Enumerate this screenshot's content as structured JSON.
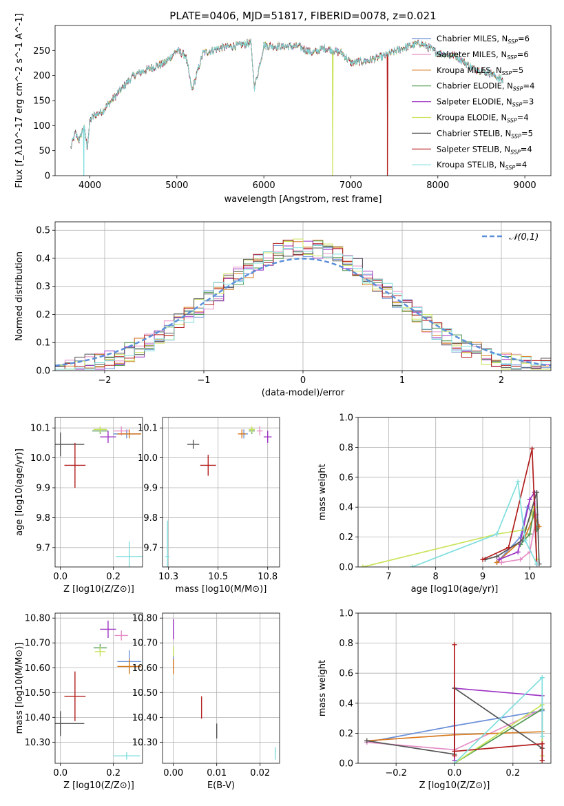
{
  "title": "PLATE=0406, MJD=51817, FIBERID=0078, z=0.021",
  "colors": {
    "chab_miles": "#6a8fd8",
    "salp_miles": "#e58fc6",
    "krou_miles": "#d97a1f",
    "chab_elodie": "#4f9a4f",
    "salp_elodie": "#9d32c4",
    "krou_elodie": "#c9e45a",
    "chab_stelib": "#555555",
    "salp_stelib": "#b21d1d",
    "krou_stelib": "#80dede",
    "normal": "#5b8fd8"
  },
  "chart_data": [
    {
      "id": "spectrum",
      "type": "line",
      "xlabel": "wavelength [Angstrom, rest frame]",
      "ylabel": "Flux [f_λ10^-17 erg cm^-2 s^-1 A^-1]",
      "xlim": [
        3600,
        9300
      ],
      "ylim": [
        0,
        300
      ],
      "xticks": [
        4000,
        5000,
        6000,
        7000,
        8000,
        9000
      ],
      "yticks": [
        0,
        50,
        100,
        150,
        200,
        250
      ],
      "legend_position": "upper-right",
      "grid": false,
      "x_range_data": [
        3780,
        8750
      ],
      "spectrum_anchors": {
        "x": [
          3780,
          3830,
          3880,
          3930,
          3970,
          4000,
          4050,
          4150,
          4300,
          4400,
          4500,
          4700,
          4860,
          5000,
          5100,
          5175,
          5300,
          5500,
          5700,
          5850,
          5893,
          6000,
          6200,
          6400,
          6563,
          6700,
          6900,
          7000,
          7200,
          7400,
          7600,
          7800,
          8000,
          8200,
          8400,
          8600,
          8750
        ],
        "y": [
          55,
          85,
          70,
          100,
          55,
          110,
          120,
          130,
          160,
          180,
          200,
          215,
          225,
          250,
          240,
          170,
          245,
          255,
          260,
          265,
          175,
          260,
          258,
          258,
          245,
          255,
          245,
          225,
          230,
          240,
          255,
          265,
          245,
          240,
          215,
          205,
          190
        ]
      },
      "series": [
        {
          "name": "Chabrier MILES, N_SSP=6",
          "color_key": "chab_miles"
        },
        {
          "name": "Salpeter MILES, N_SSP=6",
          "color_key": "salp_miles"
        },
        {
          "name": "Kroupa MILES, N_SSP=5",
          "color_key": "krou_miles"
        },
        {
          "name": "Chabrier ELODIE, N_SSP=4",
          "color_key": "chab_elodie"
        },
        {
          "name": "Salpeter ELODIE, N_SSP=3",
          "color_key": "salp_elodie"
        },
        {
          "name": "Kroupa ELODIE, N_SSP=4",
          "color_key": "krou_elodie"
        },
        {
          "name": "Chabrier STELIB, N_SSP=5",
          "color_key": "chab_stelib"
        },
        {
          "name": "Salpeter STELIB, N_SSP=4",
          "color_key": "salp_stelib"
        },
        {
          "name": "Kroupa STELIB, N_SSP=4",
          "color_key": "krou_stelib"
        }
      ],
      "dropouts": [
        {
          "series": "Kroupa ELODIE, N_SSP=4",
          "x": 6790
        },
        {
          "series": "Salpeter STELIB, N_SSP=4",
          "x": 7420
        },
        {
          "series": "Kroupa STELIB, N_SSP=4",
          "x": 3930
        }
      ]
    },
    {
      "id": "residuals",
      "type": "histogram",
      "xlabel": "(data-model)/error",
      "ylabel": "Normed distribution",
      "xlim": [
        -2.5,
        2.5
      ],
      "ylim": [
        0,
        0.53
      ],
      "xticks": [
        -2,
        -1,
        0,
        1,
        2
      ],
      "yticks": [
        0.0,
        0.1,
        0.2,
        0.3,
        0.4,
        0.5
      ],
      "grid": true,
      "bin_width": 0.1,
      "reference_curve": {
        "name": "𝒩(0,1)",
        "mean": 0,
        "sigma": 1
      },
      "legend_position": "upper-right"
    },
    {
      "id": "age_vs_Z",
      "type": "errorbar",
      "xlabel": "Z [log10(Z/Z⊙)]",
      "ylabel": "age [log10(age/yr)]",
      "xlim": [
        -0.02,
        0.31
      ],
      "ylim": [
        9.635,
        10.135
      ],
      "xticks": [
        0.0,
        0.2
      ],
      "yticks": [
        9.7,
        9.8,
        9.9,
        10.0,
        10.1
      ],
      "grid": true,
      "points": [
        {
          "color_key": "chab_miles",
          "x": 0.25,
          "y": 10.08,
          "xerr": 0.05,
          "yerr": 0.015
        },
        {
          "color_key": "salp_miles",
          "x": 0.23,
          "y": 10.09,
          "xerr": 0.03,
          "yerr": 0.015
        },
        {
          "color_key": "krou_miles",
          "x": 0.26,
          "y": 10.08,
          "xerr": 0.045,
          "yerr": 0.015
        },
        {
          "color_key": "chab_elodie",
          "x": 0.15,
          "y": 10.09,
          "xerr": 0.03,
          "yerr": 0.01
        },
        {
          "color_key": "salp_elodie",
          "x": 0.18,
          "y": 10.07,
          "xerr": 0.03,
          "yerr": 0.02
        },
        {
          "color_key": "krou_elodie",
          "x": 0.15,
          "y": 10.095,
          "xerr": 0.025,
          "yerr": 0.01
        },
        {
          "color_key": "chab_stelib",
          "x": 0.0,
          "y": 10.045,
          "xerr": 0.09,
          "yerr": 0.04
        },
        {
          "color_key": "salp_stelib",
          "x": 0.055,
          "y": 9.975,
          "xerr": 0.04,
          "yerr": 0.075
        },
        {
          "color_key": "krou_stelib",
          "x": 0.26,
          "y": 9.67,
          "xerr": 0.05,
          "yerr": 0.05
        }
      ]
    },
    {
      "id": "age_vs_mass",
      "type": "errorbar",
      "xlabel": "mass [log10(M/M⊙)]",
      "ylabel": "",
      "xlim": [
        10.22,
        10.81
      ],
      "ylim": [
        9.635,
        10.135
      ],
      "xticks": [
        10.25,
        10.5,
        10.75
      ],
      "yticks": [
        9.7,
        9.8,
        9.9,
        10.0,
        10.1
      ],
      "grid": true,
      "points": [
        {
          "color_key": "chab_miles",
          "x": 10.63,
          "y": 10.08,
          "xerr": 0.02,
          "yerr": 0.015
        },
        {
          "color_key": "salp_miles",
          "x": 10.71,
          "y": 10.09,
          "xerr": 0.015,
          "yerr": 0.015
        },
        {
          "color_key": "krou_miles",
          "x": 10.62,
          "y": 10.08,
          "xerr": 0.02,
          "yerr": 0.015
        },
        {
          "color_key": "chab_elodie",
          "x": 10.67,
          "y": 10.09,
          "xerr": 0.015,
          "yerr": 0.01
        },
        {
          "color_key": "salp_elodie",
          "x": 10.75,
          "y": 10.07,
          "xerr": 0.02,
          "yerr": 0.02
        },
        {
          "color_key": "krou_elodie",
          "x": 10.67,
          "y": 10.095,
          "xerr": 0.015,
          "yerr": 0.01
        },
        {
          "color_key": "chab_stelib",
          "x": 10.375,
          "y": 10.045,
          "xerr": 0.03,
          "yerr": 0.015
        },
        {
          "color_key": "salp_stelib",
          "x": 10.45,
          "y": 9.975,
          "xerr": 0.04,
          "yerr": 0.035
        },
        {
          "color_key": "krou_stelib",
          "x": 10.245,
          "y": 9.67,
          "xerr": 0.01,
          "yerr": 0.12
        }
      ]
    },
    {
      "id": "weight_vs_age",
      "type": "line",
      "xlabel": "age [log10(age/yr)]",
      "ylabel": "mass weight",
      "xlim": [
        6.35,
        10.45
      ],
      "ylim": [
        0,
        1
      ],
      "xticks": [
        7,
        8,
        9,
        10
      ],
      "yticks": [
        0.0,
        0.2,
        0.4,
        0.6,
        0.8,
        1.0
      ],
      "grid": true,
      "series": [
        {
          "color_key": "chab_miles",
          "x": [
            9.3,
            9.8,
            9.95,
            10.1,
            10.15
          ],
          "y": [
            0.03,
            0.2,
            0.4,
            0.35,
            0.02
          ]
        },
        {
          "color_key": "salp_miles",
          "x": [
            9.4,
            9.8,
            10.0,
            10.15,
            10.2
          ],
          "y": [
            0.03,
            0.05,
            0.1,
            0.35,
            0.27
          ]
        },
        {
          "color_key": "krou_miles",
          "x": [
            9.3,
            9.9,
            10.1,
            10.2
          ],
          "y": [
            0.03,
            0.2,
            0.35,
            0.27
          ]
        },
        {
          "color_key": "chab_elodie",
          "x": [
            9.8,
            10.0,
            10.1,
            10.15
          ],
          "y": [
            0.15,
            0.22,
            0.4,
            0.25
          ]
        },
        {
          "color_key": "salp_elodie",
          "x": [
            9.35,
            9.75,
            10.0,
            10.1,
            10.15
          ],
          "y": [
            0.05,
            0.1,
            0.45,
            0.5,
            0.02
          ]
        },
        {
          "color_key": "krou_elodie",
          "x": [
            6.45,
            9.3,
            9.9,
            10.1,
            10.15
          ],
          "y": [
            0.0,
            0.22,
            0.25,
            0.4,
            0.05
          ]
        },
        {
          "color_key": "chab_stelib",
          "x": [
            9.05,
            9.3,
            9.85,
            10.15,
            10.2
          ],
          "y": [
            0.05,
            0.07,
            0.18,
            0.5,
            0.02
          ]
        },
        {
          "color_key": "salp_stelib",
          "x": [
            9.0,
            9.55,
            10.05,
            10.15
          ],
          "y": [
            0.05,
            0.13,
            0.79,
            0.02
          ]
        },
        {
          "color_key": "krou_stelib",
          "x": [
            7.5,
            9.3,
            9.75,
            9.9,
            10.15
          ],
          "y": [
            0.0,
            0.22,
            0.57,
            0.18,
            0.02
          ]
        }
      ]
    },
    {
      "id": "mass_vs_Z",
      "type": "errorbar",
      "xlabel": "Z [log10(Z/Z⊙)]",
      "ylabel": "mass [log10(M/M⊙)]",
      "xlim": [
        -0.02,
        0.31
      ],
      "ylim": [
        10.215,
        10.82
      ],
      "xticks": [
        0.0,
        0.2
      ],
      "yticks": [
        10.3,
        10.4,
        10.5,
        10.6,
        10.7,
        10.8
      ],
      "grid": true,
      "points": [
        {
          "color_key": "chab_miles",
          "x": 0.26,
          "y": 10.625,
          "xerr": 0.045,
          "yerr": 0.045
        },
        {
          "color_key": "salp_miles",
          "x": 0.23,
          "y": 10.73,
          "xerr": 0.025,
          "yerr": 0.02
        },
        {
          "color_key": "krou_miles",
          "x": 0.26,
          "y": 10.605,
          "xerr": 0.045,
          "yerr": 0.03
        },
        {
          "color_key": "chab_elodie",
          "x": 0.15,
          "y": 10.68,
          "xerr": 0.025,
          "yerr": 0.015
        },
        {
          "color_key": "salp_elodie",
          "x": 0.18,
          "y": 10.755,
          "xerr": 0.03,
          "yerr": 0.035
        },
        {
          "color_key": "krou_elodie",
          "x": 0.15,
          "y": 10.665,
          "xerr": 0.02,
          "yerr": 0.02
        },
        {
          "color_key": "chab_stelib",
          "x": 0.0,
          "y": 10.375,
          "xerr": 0.09,
          "yerr": 0.05
        },
        {
          "color_key": "salp_stelib",
          "x": 0.055,
          "y": 10.485,
          "xerr": 0.04,
          "yerr": 0.1
        },
        {
          "color_key": "krou_stelib",
          "x": 0.25,
          "y": 10.245,
          "xerr": 0.05,
          "yerr": 0.015
        }
      ]
    },
    {
      "id": "mass_vs_ebv",
      "type": "errorbar",
      "xlabel": "E(B-V)",
      "ylabel": "",
      "xlim": [
        -0.0025,
        0.0245
      ],
      "ylim": [
        10.215,
        10.82
      ],
      "xticks": [
        0.0,
        0.01,
        0.02
      ],
      "yticks": [
        10.3,
        10.4,
        10.5,
        10.6,
        10.7,
        10.8
      ],
      "grid": true,
      "points": [
        {
          "color_key": "chab_miles",
          "x": 0.0,
          "y": 10.625,
          "xerr": 0.0,
          "yerr": 0.03
        },
        {
          "color_key": "salp_miles",
          "x": 0.0,
          "y": 10.73,
          "xerr": 0.0,
          "yerr": 0.02
        },
        {
          "color_key": "krou_miles",
          "x": 0.0,
          "y": 10.605,
          "xerr": 0.0,
          "yerr": 0.03
        },
        {
          "color_key": "chab_elodie",
          "x": 0.0,
          "y": 10.665,
          "xerr": 0.0,
          "yerr": 0.02
        },
        {
          "color_key": "salp_elodie",
          "x": 0.0,
          "y": 10.755,
          "xerr": 0.0,
          "yerr": 0.04
        },
        {
          "color_key": "krou_elodie",
          "x": 0.0,
          "y": 10.665,
          "xerr": 0.0,
          "yerr": 0.02
        },
        {
          "color_key": "chab_stelib",
          "x": 0.01,
          "y": 10.345,
          "xerr": 0.0,
          "yerr": 0.03
        },
        {
          "color_key": "salp_stelib",
          "x": 0.0065,
          "y": 10.44,
          "xerr": 0.0,
          "yerr": 0.045
        },
        {
          "color_key": "krou_stelib",
          "x": 0.0235,
          "y": 10.255,
          "xerr": 0.0,
          "yerr": 0.025
        }
      ]
    },
    {
      "id": "weight_vs_Z",
      "type": "line",
      "xlabel": "Z [log10(Z/Z⊙)]",
      "ylabel": "mass weight",
      "xlim": [
        -0.33,
        0.33
      ],
      "ylim": [
        0,
        1
      ],
      "xticks": [
        -0.2,
        0.0,
        0.2
      ],
      "yticks": [
        0.0,
        0.2,
        0.4,
        0.6,
        0.8,
        1.0
      ],
      "grid": true,
      "series": [
        {
          "color_key": "chab_miles",
          "x": [
            -0.3,
            0.0,
            0.3
          ],
          "y": [
            0.14,
            0.25,
            0.35
          ]
        },
        {
          "color_key": "salp_miles",
          "x": [
            -0.3,
            0.0,
            0.3
          ],
          "y": [
            0.14,
            0.09,
            0.36
          ]
        },
        {
          "color_key": "krou_miles",
          "x": [
            -0.3,
            0.0,
            0.3
          ],
          "y": [
            0.15,
            0.19,
            0.21
          ]
        },
        {
          "color_key": "chab_elodie",
          "x": [
            0.0,
            0.3,
            0.3
          ],
          "y": [
            0.0,
            0.36,
            0.02
          ]
        },
        {
          "color_key": "salp_elodie",
          "x": [
            0.0,
            0.0,
            0.3,
            0.3
          ],
          "y": [
            0.02,
            0.5,
            0.45,
            0.02
          ]
        },
        {
          "color_key": "krou_elodie",
          "x": [
            0.0,
            0.3,
            0.3
          ],
          "y": [
            0.0,
            0.39,
            0.05
          ]
        },
        {
          "color_key": "chab_stelib",
          "x": [
            -0.3,
            0.0,
            0.0,
            0.3,
            0.3
          ],
          "y": [
            0.15,
            0.06,
            0.5,
            0.1,
            0.02
          ]
        },
        {
          "color_key": "salp_stelib",
          "x": [
            0.0,
            0.0,
            0.0,
            0.3,
            0.3
          ],
          "y": [
            0.79,
            0.05,
            0.08,
            0.13,
            0.02
          ]
        },
        {
          "color_key": "krou_stelib",
          "x": [
            0.0,
            0.3,
            0.3
          ],
          "y": [
            0.0,
            0.57,
            0.18
          ]
        }
      ]
    }
  ]
}
